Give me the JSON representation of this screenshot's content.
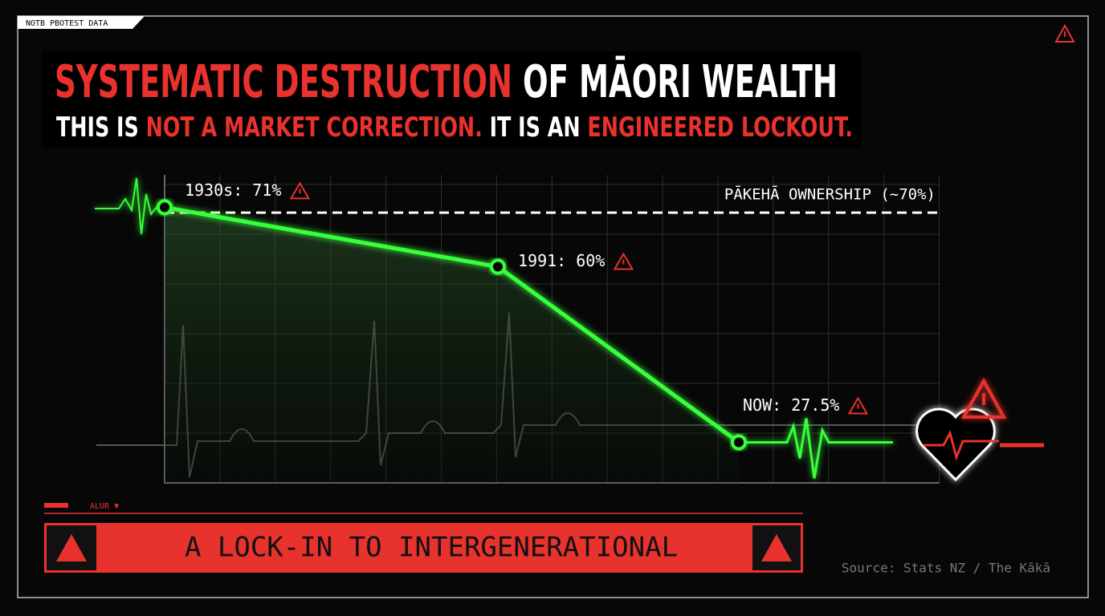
{
  "chart_data": {
    "type": "line",
    "tag": "NOTB PBOTEST DATA",
    "title_parts": [
      "SYSTEMATIC DESTRUCTION",
      " OF MĀORI WEALTH"
    ],
    "subtitle_parts": [
      "THIS IS ",
      "NOT A MARKET CORRECTION.",
      " IT IS AN ",
      "ENGINEERED LOCKOUT."
    ],
    "values": [
      71,
      60,
      27.5
    ],
    "value_labels": [
      "1930s: 71%",
      "1991: 60%",
      "NOW: 27.5%"
    ],
    "color": "#39ff3a",
    "ylim": [
      20,
      77
    ],
    "reference": {
      "text": "PĀKEHĀ OWNERSHIP (~70%)",
      "value": 70
    },
    "grid": true,
    "small_label": "ALUR ▼",
    "banner": "A LOCK-IN TO INTERGENERATIONAL",
    "source": "Source: Stats NZ / The Kākā"
  }
}
